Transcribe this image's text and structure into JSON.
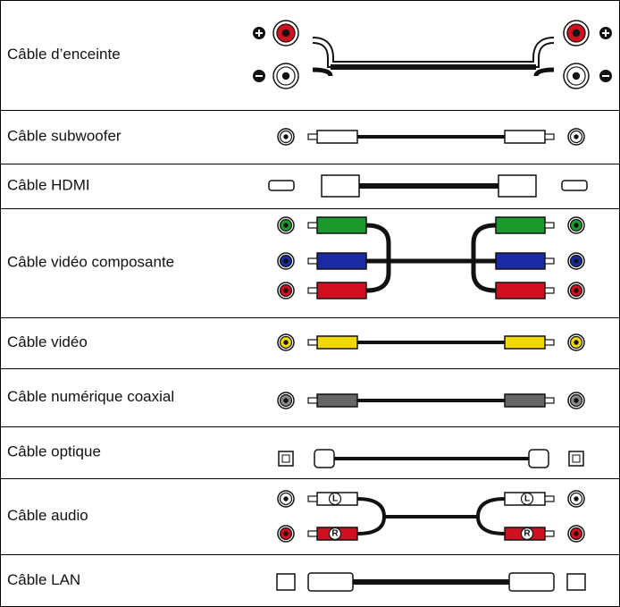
{
  "rows": [
    {
      "label": "Câble d’enceinte"
    },
    {
      "label": "Câble subwoofer"
    },
    {
      "label": "Câble HDMI"
    },
    {
      "label": "Câble vidéo composante"
    },
    {
      "label": "Câble vidéo"
    },
    {
      "label": "Câble numérique coaxial"
    },
    {
      "label": "Câble optique"
    },
    {
      "label": "Câble audio"
    },
    {
      "label": "Câble LAN"
    }
  ],
  "audio_markers": [
    "L",
    "R"
  ]
}
